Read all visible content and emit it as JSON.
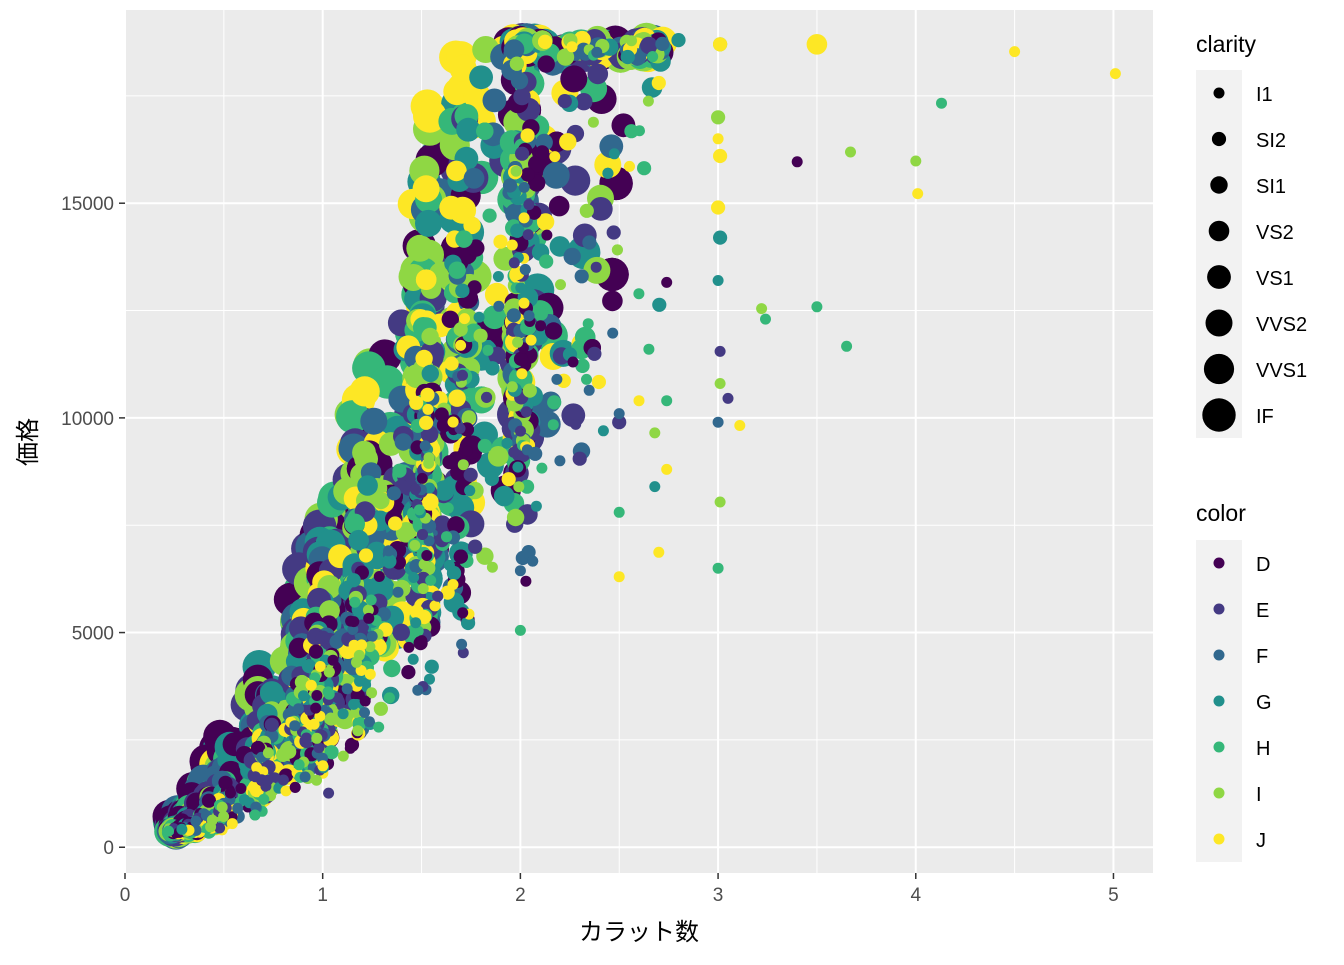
{
  "chart_data": {
    "type": "scatter",
    "title": "",
    "xlabel": "カラット数",
    "ylabel": "価格",
    "xlim": [
      0,
      5.2
    ],
    "ylim": [
      -600,
      19500
    ],
    "x_ticks": [
      "0",
      "1",
      "2",
      "3",
      "4",
      "5"
    ],
    "y_ticks": [
      "0",
      "5000",
      "10000",
      "15000"
    ],
    "grid": true,
    "legend_position": "right",
    "size_legend": {
      "title": "clarity",
      "entries": [
        "I1",
        "SI2",
        "SI1",
        "VS2",
        "VS1",
        "VVS2",
        "VVS1",
        "IF"
      ]
    },
    "color_legend": {
      "title": "color",
      "entries": [
        "D",
        "E",
        "F",
        "G",
        "H",
        "I",
        "J"
      ],
      "colors": [
        "#440154",
        "#443A83",
        "#31688E",
        "#21908C",
        "#35B779",
        "#8FD744",
        "#FDE725"
      ]
    },
    "points": [
      {
        "x": 3.4,
        "y": 15964,
        "color": "D",
        "clarity": "I1"
      },
      {
        "x": 2.74,
        "y": 13156,
        "color": "D",
        "clarity": "I1"
      },
      {
        "x": 3.05,
        "y": 10453,
        "color": "E",
        "clarity": "I1"
      },
      {
        "x": 3.01,
        "y": 11548,
        "color": "E",
        "clarity": "I1"
      },
      {
        "x": 2.5,
        "y": 9900,
        "color": "E",
        "clarity": "SI2"
      },
      {
        "x": 2.3,
        "y": 9050,
        "color": "E",
        "clarity": "SI2"
      },
      {
        "x": 1.03,
        "y": 1260,
        "color": "E",
        "clarity": "I1"
      },
      {
        "x": 3.0,
        "y": 9900,
        "color": "F",
        "clarity": "I1"
      },
      {
        "x": 2.5,
        "y": 10100,
        "color": "F",
        "clarity": "I1"
      },
      {
        "x": 2.2,
        "y": 9000,
        "color": "F",
        "clarity": "I1"
      },
      {
        "x": 3.01,
        "y": 14200,
        "color": "G",
        "clarity": "SI2"
      },
      {
        "x": 2.8,
        "y": 18800,
        "color": "G",
        "clarity": "SI2"
      },
      {
        "x": 3.0,
        "y": 13200,
        "color": "G",
        "clarity": "I1"
      },
      {
        "x": 2.68,
        "y": 8400,
        "color": "G",
        "clarity": "I1"
      },
      {
        "x": 2.42,
        "y": 9700,
        "color": "G",
        "clarity": "I1"
      },
      {
        "x": 3.0,
        "y": 6500,
        "color": "H",
        "clarity": "I1"
      },
      {
        "x": 4.13,
        "y": 17329,
        "color": "H",
        "clarity": "I1"
      },
      {
        "x": 3.65,
        "y": 11668,
        "color": "H",
        "clarity": "I1"
      },
      {
        "x": 3.5,
        "y": 12587,
        "color": "H",
        "clarity": "I1"
      },
      {
        "x": 3.24,
        "y": 12300,
        "color": "H",
        "clarity": "I1"
      },
      {
        "x": 2.74,
        "y": 10400,
        "color": "H",
        "clarity": "I1"
      },
      {
        "x": 2.5,
        "y": 7800,
        "color": "H",
        "clarity": "I1"
      },
      {
        "x": 2.65,
        "y": 11600,
        "color": "H",
        "clarity": "I1"
      },
      {
        "x": 2.0,
        "y": 5050,
        "color": "H",
        "clarity": "I1"
      },
      {
        "x": 3.67,
        "y": 16193,
        "color": "I",
        "clarity": "I1"
      },
      {
        "x": 4.0,
        "y": 15984,
        "color": "I",
        "clarity": "I1"
      },
      {
        "x": 3.22,
        "y": 12545,
        "color": "I",
        "clarity": "I1"
      },
      {
        "x": 3.01,
        "y": 18700,
        "color": "I",
        "clarity": "SI2"
      },
      {
        "x": 3.0,
        "y": 17000,
        "color": "I",
        "clarity": "SI2"
      },
      {
        "x": 3.01,
        "y": 10800,
        "color": "I",
        "clarity": "I1"
      },
      {
        "x": 3.01,
        "y": 8040,
        "color": "I",
        "clarity": "I1"
      },
      {
        "x": 2.68,
        "y": 9650,
        "color": "I",
        "clarity": "I1"
      },
      {
        "x": 3.5,
        "y": 18701,
        "color": "J",
        "clarity": "VS2"
      },
      {
        "x": 4.5,
        "y": 18531,
        "color": "J",
        "clarity": "I1"
      },
      {
        "x": 5.01,
        "y": 18018,
        "color": "J",
        "clarity": "I1"
      },
      {
        "x": 4.01,
        "y": 15223,
        "color": "J",
        "clarity": "I1"
      },
      {
        "x": 3.11,
        "y": 9823,
        "color": "J",
        "clarity": "I1"
      },
      {
        "x": 3.01,
        "y": 16100,
        "color": "J",
        "clarity": "SI2"
      },
      {
        "x": 3.0,
        "y": 14900,
        "color": "J",
        "clarity": "SI2"
      },
      {
        "x": 3.0,
        "y": 16500,
        "color": "J",
        "clarity": "I1"
      },
      {
        "x": 3.01,
        "y": 18700,
        "color": "J",
        "clarity": "SI2"
      },
      {
        "x": 2.74,
        "y": 8800,
        "color": "J",
        "clarity": "I1"
      },
      {
        "x": 2.7,
        "y": 6870,
        "color": "J",
        "clarity": "I1"
      },
      {
        "x": 2.5,
        "y": 6300,
        "color": "J",
        "clarity": "I1"
      },
      {
        "x": 2.6,
        "y": 10400,
        "color": "J",
        "clarity": "I1"
      },
      {
        "x": 2.7,
        "y": 17800,
        "color": "J",
        "clarity": "SI2"
      }
    ]
  }
}
